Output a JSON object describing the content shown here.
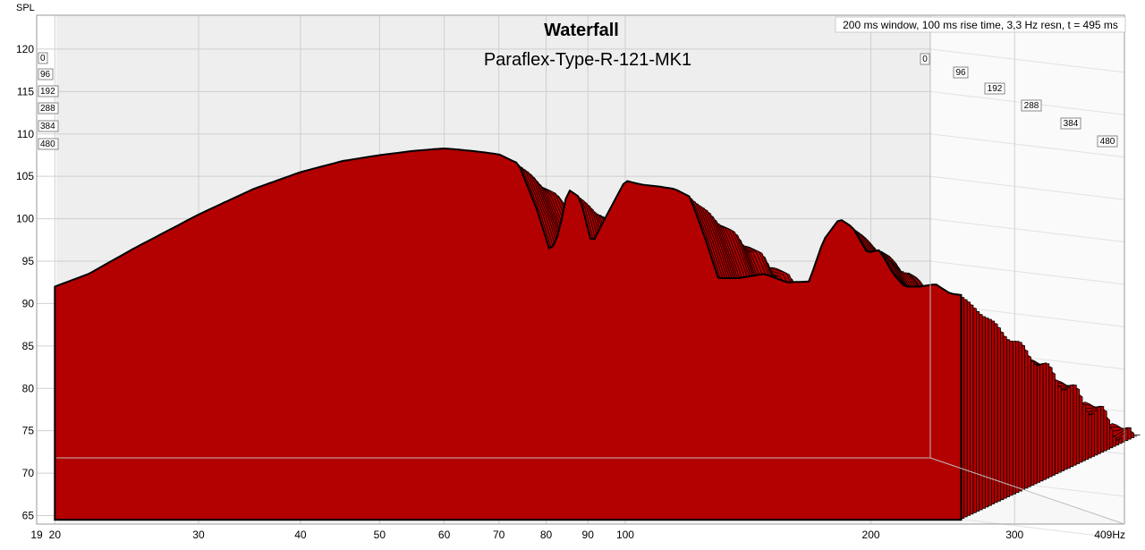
{
  "chart_data": {
    "type": "area",
    "chart_style": "waterfall-3d",
    "title": "Waterfall",
    "subtitle": "Paraflex-Type-R-121-MK1",
    "info": "200 ms window, 100 ms rise time,  3,3 Hz resn, t = 495 ms",
    "ylabel": "SPL",
    "xlabel": "Hz",
    "x_scale": "log",
    "xlim": [
      19,
      409
    ],
    "ylim": [
      64,
      124
    ],
    "x_ticks": [
      "19",
      "20",
      "30",
      "40",
      "50",
      "60",
      "70",
      "80",
      "90",
      "100",
      "200",
      "300",
      "409Hz"
    ],
    "x_tick_values": [
      19,
      20,
      30,
      40,
      50,
      60,
      70,
      80,
      90,
      100,
      200,
      300,
      409
    ],
    "y_ticks": [
      120,
      115,
      110,
      105,
      100,
      95,
      90,
      85,
      80,
      75,
      70,
      65
    ],
    "time_slices_ms": [
      "0",
      "96",
      "192",
      "288",
      "384",
      "480"
    ],
    "slice_count": 60,
    "grid": true,
    "colors": {
      "fill": "#b30000",
      "line": "#000000",
      "wall": "#eeeeee",
      "grid": "#cfcfcf"
    },
    "front_slice": {
      "name": "0 ms",
      "x": [
        20,
        22,
        25,
        30,
        35,
        40,
        45,
        50,
        55,
        60,
        65,
        70,
        74,
        78,
        81,
        83,
        85,
        88,
        91,
        95,
        100,
        105,
        110,
        115,
        120,
        125,
        130,
        138,
        148,
        158,
        168,
        175,
        183,
        190,
        198,
        205,
        213,
        220,
        230,
        240,
        250,
        258
      ],
      "values": [
        92.0,
        93.5,
        96.5,
        100.5,
        103.5,
        105.5,
        106.8,
        107.5,
        108.0,
        108.3,
        108.0,
        107.6,
        106.5,
        101.0,
        96.0,
        98.5,
        103.5,
        102.5,
        97.0,
        100.5,
        104.5,
        104.0,
        103.8,
        103.5,
        102.6,
        98.0,
        93.0,
        93.0,
        93.5,
        92.5,
        92.6,
        97.5,
        100.0,
        99.0,
        96.0,
        96.3,
        93.5,
        92.0,
        92.0,
        92.3,
        91.2,
        91.0
      ]
    }
  }
}
